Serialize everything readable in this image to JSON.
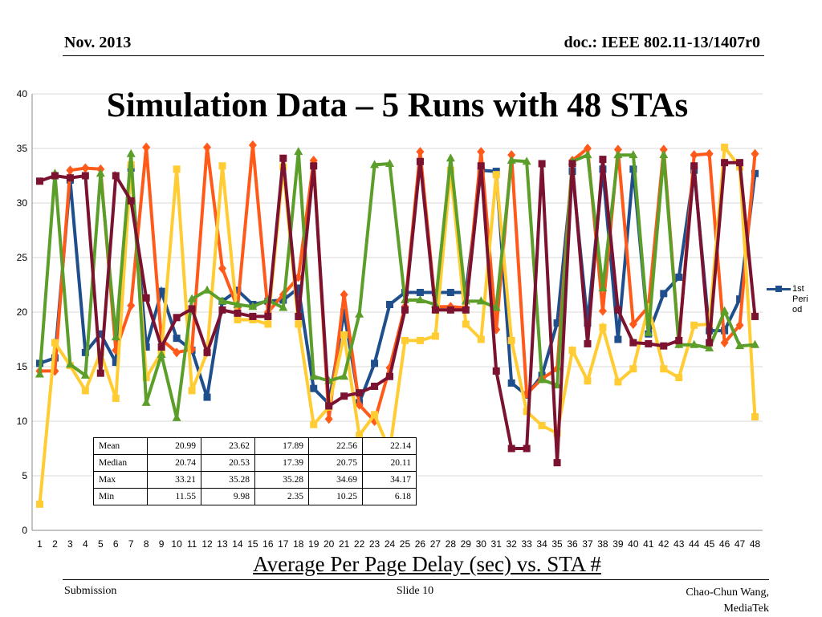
{
  "header": {
    "date": "Nov. 2013",
    "doc": "doc.: IEEE 802.11-13/1407r0"
  },
  "slide_title": "Simulation Data – 5 Runs with 48 STAs",
  "caption": "Average Per Page Delay (sec) vs. STA #",
  "footer": {
    "left": "Submission",
    "center": "Slide 10",
    "right_line1": "Chao-Chun Wang,",
    "right_line2": "MediaTek"
  },
  "stats_table": {
    "rows": [
      {
        "label": "Mean",
        "values": [
          "20.99",
          "23.62",
          "17.89",
          "22.56",
          "22.14"
        ]
      },
      {
        "label": "Median",
        "values": [
          "20.74",
          "20.53",
          "17.39",
          "20.75",
          "20.11"
        ]
      },
      {
        "label": "Max",
        "values": [
          "33.21",
          "35.28",
          "35.28",
          "34.69",
          "34.17"
        ]
      },
      {
        "label": "Min",
        "values": [
          "11.55",
          "9.98",
          "2.35",
          "10.25",
          "6.18"
        ]
      }
    ]
  },
  "legend": {
    "label": "1st Period"
  },
  "colors": {
    "blue": "#1f4e8c",
    "orange": "#ff5a1a",
    "yellow": "#ffcc33",
    "green": "#5c9e2a",
    "maroon": "#7a1230",
    "grid": "#d9d9d9",
    "axis": "#888888"
  },
  "chart_data": {
    "type": "line",
    "x": [
      1,
      2,
      3,
      4,
      5,
      6,
      7,
      8,
      9,
      10,
      11,
      12,
      13,
      14,
      15,
      16,
      17,
      18,
      19,
      20,
      21,
      22,
      23,
      24,
      25,
      26,
      27,
      28,
      29,
      30,
      31,
      32,
      33,
      34,
      35,
      36,
      37,
      38,
      39,
      40,
      41,
      42,
      43,
      44,
      45,
      46,
      47,
      48
    ],
    "ylim": [
      0,
      40
    ],
    "yticks": [
      0,
      5,
      10,
      15,
      20,
      25,
      30,
      35,
      40
    ],
    "grid": true,
    "legend_position": "right",
    "series": [
      {
        "name": "1st Period",
        "color": "#1f4e8c",
        "marker": "square",
        "values": [
          15.3,
          15.8,
          32.1,
          16.3,
          18.0,
          15.4,
          33.2,
          16.8,
          21.9,
          17.6,
          16.5,
          12.2,
          21.0,
          22.0,
          20.7,
          21.0,
          21.1,
          22.2,
          13.0,
          11.6,
          20.0,
          11.7,
          15.3,
          20.7,
          21.8,
          21.8,
          21.8,
          21.8,
          21.8,
          33.0,
          32.9,
          13.5,
          12.4,
          14.2,
          19.0,
          32.9,
          19.0,
          33.1,
          17.5,
          33.1,
          18.0,
          21.7,
          23.2,
          33.0,
          18.3,
          18.3,
          21.2,
          32.7
        ]
      },
      {
        "name": "",
        "color": "#ff5a1a",
        "marker": "diamond",
        "values": [
          14.6,
          14.6,
          33.0,
          33.2,
          33.1,
          16.5,
          20.6,
          35.1,
          17.5,
          16.3,
          16.6,
          35.1,
          24.0,
          20.4,
          35.3,
          20.0,
          21.6,
          23.2,
          33.9,
          10.2,
          21.6,
          11.5,
          10.0,
          14.9,
          20.5,
          34.7,
          20.5,
          20.5,
          20.4,
          34.7,
          18.4,
          34.4,
          12.5,
          13.9,
          14.8,
          33.9,
          35.0,
          20.1,
          34.9,
          18.9,
          20.5,
          34.9,
          17.1,
          34.4,
          34.5,
          17.2,
          18.8,
          34.5
        ]
      },
      {
        "name": "",
        "color": "#ffcc33",
        "marker": "square",
        "values": [
          2.4,
          17.2,
          15.1,
          12.8,
          16.3,
          12.1,
          33.5,
          14.0,
          16.3,
          33.1,
          12.8,
          16.3,
          33.4,
          19.3,
          19.3,
          18.9,
          33.3,
          18.9,
          9.7,
          11.3,
          17.9,
          8.7,
          10.6,
          7.3,
          17.4,
          17.4,
          17.8,
          33.0,
          18.9,
          17.5,
          32.6,
          17.4,
          10.9,
          9.6,
          8.9,
          16.5,
          13.7,
          18.6,
          13.6,
          14.8,
          20.5,
          14.8,
          14.0,
          18.8,
          18.9,
          35.1,
          33.3,
          10.4
        ]
      },
      {
        "name": "",
        "color": "#5c9e2a",
        "marker": "triangle",
        "values": [
          14.3,
          32.7,
          15.2,
          14.2,
          32.7,
          17.7,
          34.5,
          11.7,
          16.1,
          10.3,
          21.2,
          22.0,
          21.0,
          20.7,
          20.5,
          21.1,
          20.4,
          34.7,
          14.1,
          13.7,
          14.1,
          19.8,
          33.5,
          33.6,
          21.1,
          21.1,
          20.7,
          34.1,
          21.0,
          21.0,
          20.4,
          33.9,
          33.8,
          13.8,
          13.3,
          33.8,
          34.4,
          22.2,
          34.4,
          34.4,
          18.1,
          34.4,
          17.0,
          17.0,
          16.7,
          20.1,
          16.9,
          17.0
        ]
      },
      {
        "name": "",
        "color": "#7a1230",
        "marker": "square",
        "values": [
          32.0,
          32.5,
          32.3,
          32.5,
          14.4,
          32.5,
          30.2,
          21.3,
          16.8,
          19.5,
          20.3,
          16.3,
          20.2,
          19.9,
          19.6,
          19.6,
          34.1,
          19.6,
          33.4,
          11.4,
          12.3,
          12.6,
          13.2,
          14.1,
          20.2,
          33.8,
          20.2,
          20.2,
          20.2,
          33.4,
          14.6,
          7.5,
          7.5,
          33.6,
          6.2,
          33.6,
          17.1,
          34.0,
          20.2,
          17.2,
          17.1,
          16.9,
          17.4,
          33.4,
          17.2,
          33.7,
          33.7,
          19.6
        ]
      }
    ]
  }
}
